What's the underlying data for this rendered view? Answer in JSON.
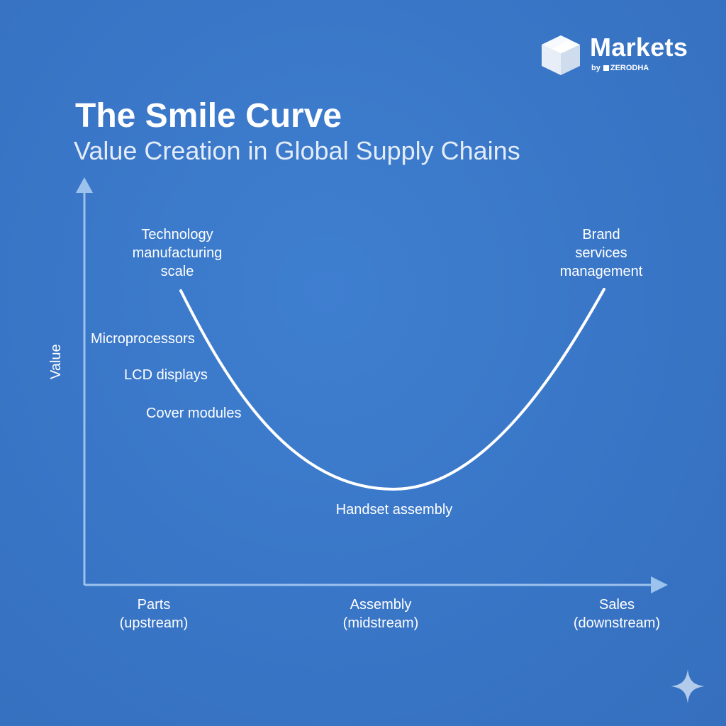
{
  "brand": {
    "name": "Markets",
    "sub_prefix": "by",
    "sub_name": "ZERODHA"
  },
  "title": "The Smile Curve",
  "subtitle": "Value Creation in Global Supply Chains",
  "axes": {
    "y_label": "Value",
    "x_stages": [
      {
        "line1": "Parts",
        "line2": "(upstream)"
      },
      {
        "line1": "Assembly",
        "line2": "(midstream)"
      },
      {
        "line1": "Sales",
        "line2": "(downstream)"
      }
    ]
  },
  "curve_labels": {
    "left_top": [
      "Technology",
      "manufacturing",
      "scale"
    ],
    "right_top": [
      "Brand",
      "services",
      "management"
    ],
    "left_items": [
      "Microprocessors",
      "LCD displays",
      "Cover modules"
    ],
    "bottom": "Handset assembly"
  },
  "colors": {
    "background": "#3a77c8",
    "axis": "#9cc2ee",
    "curve": "#ffffff",
    "text": "#ffffff"
  },
  "icons": [
    "logo-cube-icon",
    "sparkle-icon"
  ]
}
